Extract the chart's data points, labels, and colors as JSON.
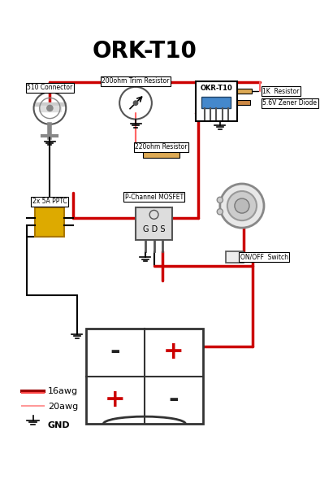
{
  "title": "ORK-T10",
  "title_fontsize": 20,
  "title_bold": true,
  "bg_color": "#ffffff",
  "wire_red_thick": "#cc0000",
  "wire_red_thin": "#ff6666",
  "wire_black": "#000000",
  "component_labels": {
    "connector": "510 Connector",
    "trim_resistor": "200ohm Trim Resistor",
    "okr": "OKR-T10",
    "resistor_1k": "1K  Resistor",
    "zener": "5.6V Zener Diode",
    "resistor_220": "220ohm Resistor",
    "pptc": "2x 5A PPTC",
    "mosfet": "P-Channel MOSFET",
    "mosfet_pins": "G D S",
    "switch": "ON/OFF  Switch",
    "battery_neg1": "-",
    "battery_pos1": "+",
    "battery_pos2": "+",
    "battery_neg2": "-"
  },
  "legend": {
    "16awg_color": "#990000",
    "16awg_color2": "#ff4444",
    "20awg_color": "#ff9999",
    "gnd_color": "#000000",
    "labels": [
      "16awg",
      "20awg",
      "GND"
    ]
  }
}
